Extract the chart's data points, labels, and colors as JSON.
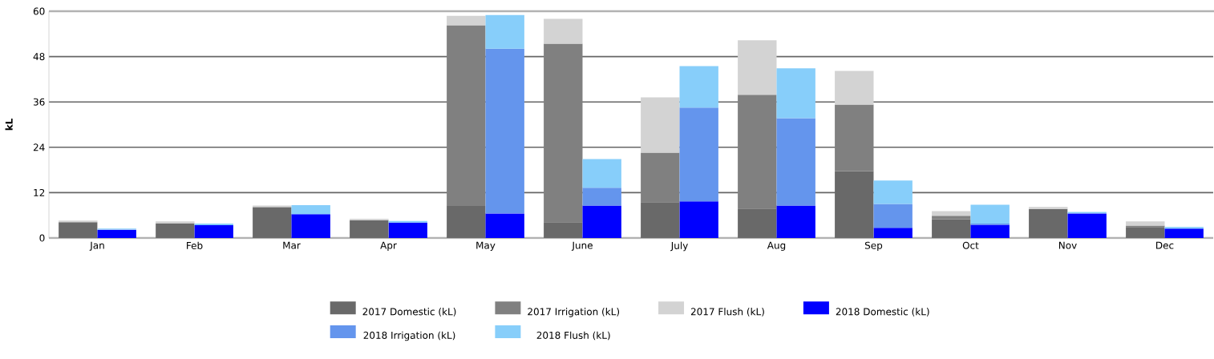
{
  "chart_data": {
    "type": "bar",
    "ylabel": "kL",
    "categories": [
      "Jan",
      "Feb",
      "Mar",
      "Apr",
      "May",
      "June",
      "July",
      "Aug",
      "Sep",
      "Oct",
      "Nov",
      "Dec"
    ],
    "series": [
      {
        "name": "2017 Domestic (kL)",
        "color": "#696969",
        "values": [
          4.2,
          3.9,
          8.2,
          4.7,
          8.5,
          4.2,
          9.5,
          7.8,
          17.7,
          5.0,
          7.7,
          2.9
        ],
        "base": [
          0,
          0,
          0,
          0,
          0,
          0,
          0,
          0,
          0,
          0,
          0,
          0
        ]
      },
      {
        "name": "2017 Irrigation (kL)",
        "color": "#808080",
        "values": [
          null,
          null,
          null,
          null,
          47.8,
          47.2,
          13.1,
          30.1,
          17.6,
          0.9,
          null,
          0.4
        ],
        "base": [
          null,
          null,
          null,
          null,
          8.5,
          4.2,
          9.5,
          7.8,
          17.7,
          5.0,
          null,
          2.9
        ]
      },
      {
        "name": "2017 Flush (kL)",
        "color": "#d3d3d3",
        "values": [
          0.4,
          0.5,
          0.4,
          0.4,
          2.5,
          6.6,
          14.6,
          14.4,
          8.9,
          1.2,
          0.5,
          1.1
        ],
        "base": [
          4.2,
          3.9,
          8.2,
          4.7,
          56.3,
          51.4,
          22.6,
          37.9,
          35.3,
          5.9,
          7.7,
          3.3
        ]
      },
      {
        "name": "2018 Domestic (kL)",
        "color": "#0000ff",
        "values": [
          2.2,
          3.4,
          6.3,
          4.1,
          6.5,
          8.6,
          9.7,
          8.6,
          2.7,
          3.5,
          6.5,
          2.5
        ],
        "base": [
          0,
          0,
          0,
          0,
          0,
          0,
          0,
          0,
          0,
          0,
          0,
          0
        ]
      },
      {
        "name": "2018 Irrigation (kL)",
        "color": "#6495ed",
        "values": [
          null,
          null,
          null,
          null,
          43.6,
          4.7,
          24.8,
          23.1,
          6.3,
          0.3,
          null,
          null
        ],
        "base": [
          null,
          null,
          null,
          null,
          6.5,
          8.6,
          9.7,
          8.6,
          2.7,
          3.5,
          null,
          null
        ]
      },
      {
        "name": "2018 Flush (kL)",
        "color": "#87cefa",
        "values": [
          0.3,
          0.4,
          2.4,
          0.4,
          8.9,
          7.6,
          11.0,
          13.2,
          6.2,
          5.0,
          0.4,
          0.4
        ],
        "base": [
          2.2,
          3.4,
          6.3,
          4.1,
          50.1,
          13.3,
          34.5,
          31.7,
          9.0,
          3.8,
          6.5,
          2.5
        ]
      }
    ],
    "ylim": [
      0,
      60
    ],
    "yticks": [
      0,
      12,
      24,
      36,
      48,
      60
    ],
    "grid": "y",
    "legend": "bottom"
  }
}
